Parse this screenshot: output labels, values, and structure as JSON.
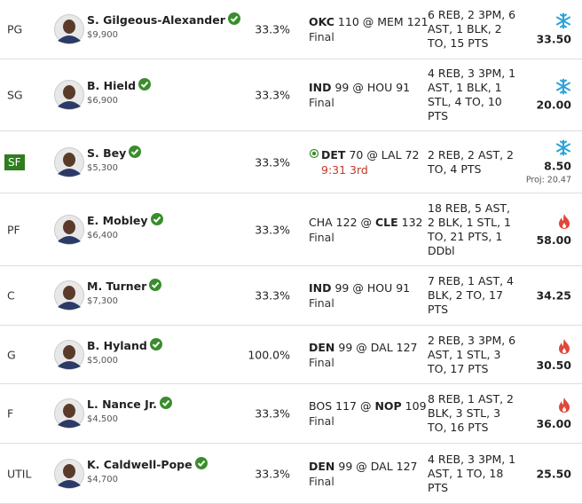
{
  "lineup": {
    "rows": [
      {
        "position": "PG",
        "player": "S. Gilgeous-Alexander",
        "salary": "$9,900",
        "ownership": "33.3%",
        "game": {
          "away": "OKC",
          "away_score": 110,
          "home": "MEM",
          "home_score": 121,
          "bold": "away",
          "status": "Final",
          "live": false
        },
        "stats": "6 REB, 2 3PM, 6 AST, 1 BLK, 2 TO, 15 PTS",
        "trend": "cold",
        "points": "33.50",
        "projection": null
      },
      {
        "position": "SG",
        "player": "B. Hield",
        "salary": "$6,900",
        "ownership": "33.3%",
        "game": {
          "away": "IND",
          "away_score": 99,
          "home": "HOU",
          "home_score": 91,
          "bold": "away",
          "status": "Final",
          "live": false
        },
        "stats": "4 REB, 3 3PM, 1 AST, 1 BLK, 1 STL, 4 TO, 10 PTS",
        "trend": "cold",
        "points": "20.00",
        "projection": null
      },
      {
        "position": "SF",
        "player": "S. Bey",
        "salary": "$5,300",
        "ownership": "33.3%",
        "game": {
          "away": "DET",
          "away_score": 70,
          "home": "LAL",
          "home_score": 72,
          "bold": "away",
          "status": "9:31 3rd",
          "live": true
        },
        "stats": "2 REB, 2 AST, 2 TO, 4 PTS",
        "trend": "cold",
        "points": "8.50",
        "projection": "Proj: 20.47"
      },
      {
        "position": "PF",
        "player": "E. Mobley",
        "salary": "$6,400",
        "ownership": "33.3%",
        "game": {
          "away": "CHA",
          "away_score": 122,
          "home": "CLE",
          "home_score": 132,
          "bold": "home",
          "status": "Final",
          "live": false
        },
        "stats": "18 REB, 5 AST, 2 BLK, 1 STL, 1 TO, 21 PTS, 1 DDbl",
        "trend": "hot",
        "points": "58.00",
        "projection": null
      },
      {
        "position": "C",
        "player": "M. Turner",
        "salary": "$7,300",
        "ownership": "33.3%",
        "game": {
          "away": "IND",
          "away_score": 99,
          "home": "HOU",
          "home_score": 91,
          "bold": "away",
          "status": "Final",
          "live": false
        },
        "stats": "7 REB, 1 AST, 4 BLK, 2 TO, 17 PTS",
        "trend": null,
        "points": "34.25",
        "projection": null
      },
      {
        "position": "G",
        "player": "B. Hyland",
        "salary": "$5,000",
        "ownership": "100.0%",
        "game": {
          "away": "DEN",
          "away_score": 99,
          "home": "DAL",
          "home_score": 127,
          "bold": "away",
          "status": "Final",
          "live": false
        },
        "stats": "2 REB, 3 3PM, 6 AST, 1 STL, 3 TO, 17 PTS",
        "trend": "hot",
        "points": "30.50",
        "projection": null
      },
      {
        "position": "F",
        "player": "L. Nance Jr.",
        "salary": "$4,500",
        "ownership": "33.3%",
        "game": {
          "away": "BOS",
          "away_score": 117,
          "home": "NOP",
          "home_score": 109,
          "bold": "home",
          "status": "Final",
          "live": false
        },
        "stats": "8 REB, 1 AST, 2 BLK, 3 STL, 3 TO, 16 PTS",
        "trend": "hot",
        "points": "36.00",
        "projection": null
      },
      {
        "position": "UTIL",
        "player": "K. Caldwell-Pope",
        "salary": "$4,700",
        "ownership": "33.3%",
        "game": {
          "away": "DEN",
          "away_score": 99,
          "home": "DAL",
          "home_score": 127,
          "bold": "away",
          "status": "Final",
          "live": false
        },
        "stats": "4 REB, 3 3PM, 1 AST, 1 TO, 18 PTS",
        "trend": null,
        "points": "25.50",
        "projection": null
      }
    ]
  }
}
